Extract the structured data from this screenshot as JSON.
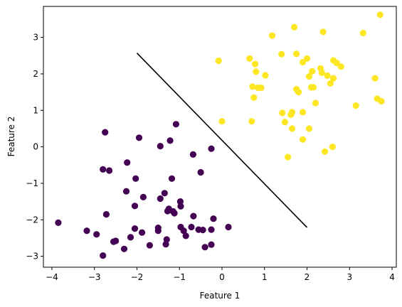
{
  "chart_data": {
    "type": "scatter",
    "title": "",
    "xlabel": "Feature 1",
    "ylabel": "Feature 2",
    "xlim": [
      -4.2,
      4.1
    ],
    "ylim": [
      -3.3,
      3.85
    ],
    "x_ticks": [
      -4,
      -3,
      -2,
      -1,
      0,
      1,
      2,
      3,
      4
    ],
    "y_ticks": [
      -3,
      -2,
      -1,
      0,
      1,
      2,
      3
    ],
    "grid": false,
    "series": [
      {
        "color": "#440154",
        "points": [
          [
            -3.85,
            -2.08
          ],
          [
            -3.18,
            -2.3
          ],
          [
            -2.95,
            -2.4
          ],
          [
            -2.8,
            -0.62
          ],
          [
            -2.75,
            0.4
          ],
          [
            -2.72,
            -1.85
          ],
          [
            -2.65,
            -0.65
          ],
          [
            -2.8,
            -2.98
          ],
          [
            -2.55,
            -2.6
          ],
          [
            -2.5,
            -2.58
          ],
          [
            -2.3,
            -2.8
          ],
          [
            -2.25,
            -1.22
          ],
          [
            -2.23,
            -0.43
          ],
          [
            -2.15,
            -2.48
          ],
          [
            -2.05,
            -1.62
          ],
          [
            -2.03,
            -0.87
          ],
          [
            -2.05,
            -2.24
          ],
          [
            -1.95,
            0.25
          ],
          [
            -1.88,
            -2.35
          ],
          [
            -1.85,
            -1.38
          ],
          [
            -1.7,
            -2.7
          ],
          [
            -1.5,
            -2.22
          ],
          [
            -1.5,
            -2.3
          ],
          [
            -1.45,
            0.02
          ],
          [
            -1.45,
            -1.42
          ],
          [
            -1.35,
            -1.27
          ],
          [
            -1.32,
            -2.67
          ],
          [
            -1.3,
            -2.54
          ],
          [
            -1.28,
            -1.76
          ],
          [
            -1.25,
            -1.7
          ],
          [
            -1.22,
            0.17
          ],
          [
            -1.18,
            -0.87
          ],
          [
            -1.15,
            -1.77
          ],
          [
            -1.12,
            -1.82
          ],
          [
            -1.08,
            0.62
          ],
          [
            -0.98,
            -1.5
          ],
          [
            -0.97,
            -2.2
          ],
          [
            -0.97,
            -1.63
          ],
          [
            -0.9,
            -2.3
          ],
          [
            -0.85,
            -2.44
          ],
          [
            -0.72,
            -2.2
          ],
          [
            -0.68,
            -0.21
          ],
          [
            -0.67,
            -1.9
          ],
          [
            -0.55,
            -2.27
          ],
          [
            -0.5,
            -0.7
          ],
          [
            -0.45,
            -2.28
          ],
          [
            -0.4,
            -2.75
          ],
          [
            -0.25,
            -2.68
          ],
          [
            -0.25,
            -0.05
          ],
          [
            -0.25,
            -2.27
          ],
          [
            -0.2,
            -1.97
          ],
          [
            0.15,
            -2.2
          ]
        ]
      },
      {
        "color": "#fde725",
        "points": [
          [
            -0.08,
            2.36
          ],
          [
            0.0,
            0.7
          ],
          [
            0.65,
            2.42
          ],
          [
            0.7,
            0.7
          ],
          [
            0.72,
            1.65
          ],
          [
            0.75,
            1.35
          ],
          [
            0.78,
            2.27
          ],
          [
            0.8,
            2.06
          ],
          [
            0.85,
            1.62
          ],
          [
            0.92,
            1.62
          ],
          [
            1.02,
            1.96
          ],
          [
            1.18,
            3.05
          ],
          [
            1.4,
            2.54
          ],
          [
            1.42,
            0.93
          ],
          [
            1.48,
            0.68
          ],
          [
            1.55,
            -0.28
          ],
          [
            1.62,
            0.88
          ],
          [
            1.65,
            0.95
          ],
          [
            1.65,
            0.5
          ],
          [
            1.7,
            3.28
          ],
          [
            1.75,
            2.55
          ],
          [
            1.75,
            1.58
          ],
          [
            1.8,
            1.5
          ],
          [
            1.9,
            2.32
          ],
          [
            1.9,
            0.95
          ],
          [
            1.9,
            0.2
          ],
          [
            2.0,
            2.42
          ],
          [
            2.05,
            1.93
          ],
          [
            2.05,
            0.5
          ],
          [
            2.1,
            1.63
          ],
          [
            2.12,
            2.07
          ],
          [
            2.15,
            1.63
          ],
          [
            2.2,
            1.2
          ],
          [
            2.32,
            2.15
          ],
          [
            2.35,
            2.03
          ],
          [
            2.38,
            3.15
          ],
          [
            2.42,
            -0.13
          ],
          [
            2.48,
            1.95
          ],
          [
            2.55,
            1.74
          ],
          [
            2.6,
            0.0
          ],
          [
            2.62,
            2.37
          ],
          [
            2.62,
            1.88
          ],
          [
            2.7,
            2.3
          ],
          [
            2.8,
            2.2
          ],
          [
            3.32,
            3.12
          ],
          [
            3.15,
            1.13
          ],
          [
            3.6,
            1.88
          ],
          [
            3.65,
            1.32
          ],
          [
            3.72,
            3.62
          ],
          [
            3.75,
            1.25
          ]
        ]
      }
    ],
    "decision_line": {
      "color": "#000000",
      "x": [
        -2.0,
        2.0
      ],
      "y": [
        2.57,
        -2.21
      ]
    }
  }
}
